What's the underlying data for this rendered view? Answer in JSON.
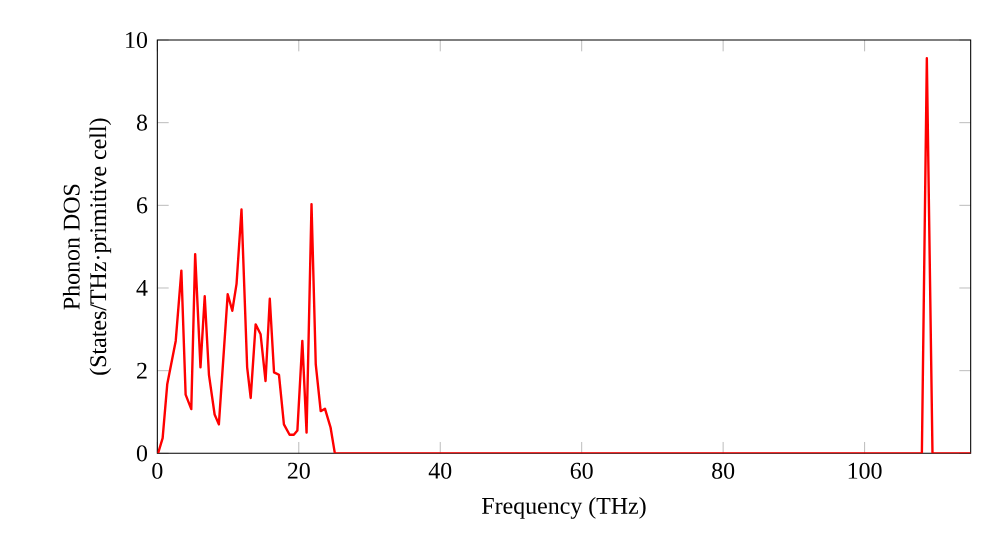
{
  "chart_data": {
    "type": "line",
    "xlabel": "Frequency (THz)",
    "ylabel": "Phonon DOS\n(States/THz·primitive cell)",
    "xlim": [
      0,
      115
    ],
    "ylim": [
      0,
      10
    ],
    "xticks": [
      0,
      20,
      40,
      60,
      80,
      100
    ],
    "yticks": [
      0,
      2,
      4,
      6,
      8,
      10
    ],
    "grid": false,
    "marker": "none",
    "line_style": "solid",
    "series": [
      {
        "color": "#ff0000",
        "x": [
          0.1,
          0.75,
          1.4,
          2.6,
          3.4,
          4.0,
          4.8,
          5.35,
          6.1,
          6.7,
          7.3,
          8.1,
          8.7,
          9.95,
          10.6,
          11.2,
          11.9,
          12.7,
          13.2,
          13.9,
          14.6,
          15.3,
          15.9,
          16.5,
          17.2,
          17.9,
          18.7,
          19.3,
          19.8,
          20.5,
          21.1,
          21.8,
          22.4,
          23.1,
          23.7,
          24.5,
          25.1,
          108.1,
          108.8,
          109.6,
          115
        ],
        "values": [
          0,
          0.37,
          1.67,
          2.72,
          4.42,
          1.42,
          1.07,
          4.82,
          2.08,
          3.8,
          1.9,
          0.94,
          0.7,
          3.85,
          3.45,
          4.1,
          5.9,
          2.08,
          1.34,
          3.12,
          2.88,
          1.75,
          3.74,
          1.96,
          1.9,
          0.7,
          0.45,
          0.45,
          0.55,
          2.72,
          0.5,
          6.03,
          2.15,
          1.02,
          1.08,
          0.62,
          0,
          0,
          9.56,
          0,
          0
        ]
      }
    ]
  }
}
